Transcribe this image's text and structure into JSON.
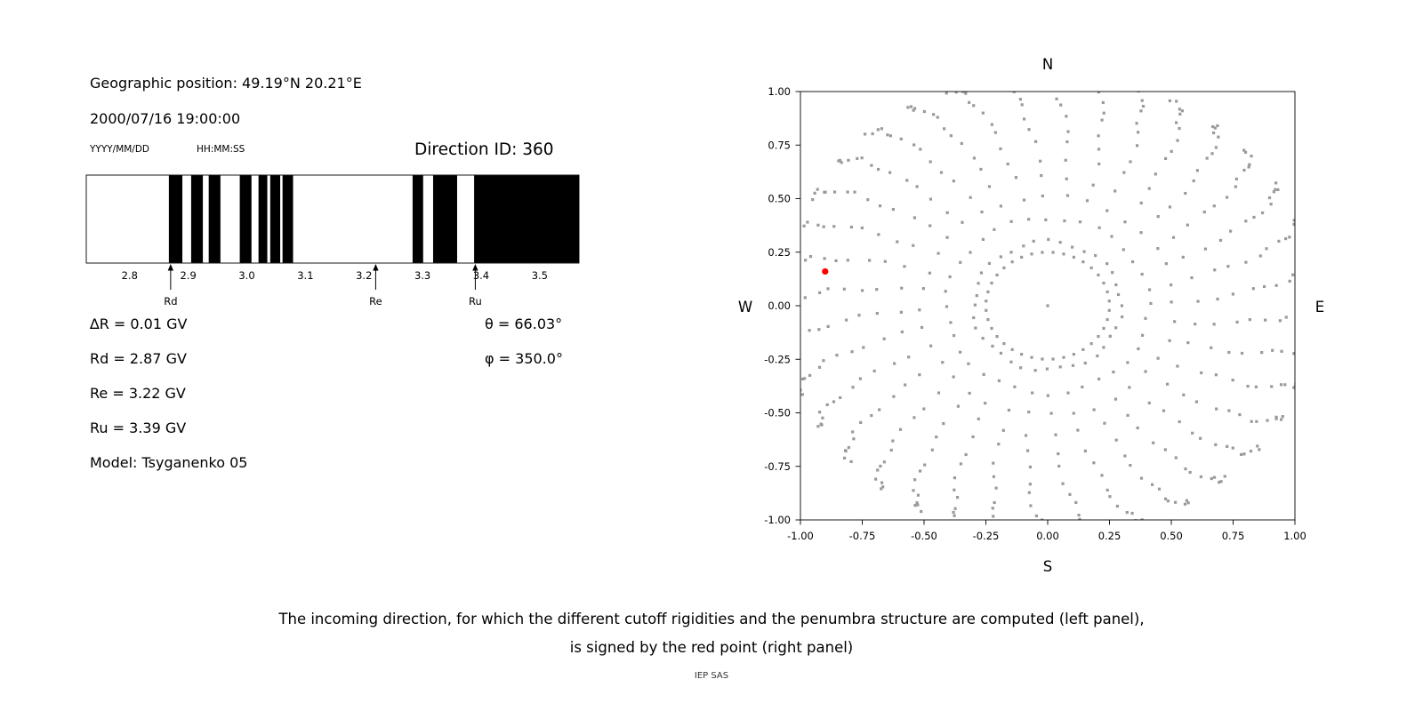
{
  "left_panel": {
    "geo_position": "Geographic position: 49.19°N 20.21°E",
    "datetime": "2000/07/16 19:00:00",
    "date_format_label": "YYYY/MM/DD",
    "time_format_label": "HH:MM:SS",
    "direction_id_label": "Direction ID: 360",
    "delta_r": "∆R = 0.01 GV",
    "rd": "Rd = 2.87 GV",
    "re": "Re = 3.22 GV",
    "ru": "Ru = 3.39 GV",
    "model": "Model: Tsyganenko 05",
    "theta": "θ = 66.03°",
    "phi": "φ = 350.0°"
  },
  "caption": {
    "line1": "The incoming direction, for which the different cutoff rigidities and the penumbra structure are computed (left panel),",
    "line2": "is signed by the red point (right panel)",
    "credit": "IEP SAS"
  },
  "chart_data": [
    {
      "type": "bar",
      "name": "penumbra-structure",
      "xlim": [
        2.726,
        3.567
      ],
      "xticks": [
        2.8,
        2.9,
        3.0,
        3.1,
        3.2,
        3.3,
        3.4,
        3.5
      ],
      "forbidden_bands_gv": [
        [
          2.867,
          2.89
        ],
        [
          2.905,
          2.925
        ],
        [
          2.935,
          2.955
        ],
        [
          2.988,
          3.008
        ],
        [
          3.02,
          3.035
        ],
        [
          3.04,
          3.057
        ],
        [
          3.061,
          3.079
        ],
        [
          3.283,
          3.301
        ],
        [
          3.318,
          3.359
        ],
        [
          3.388,
          3.567
        ]
      ],
      "markers": [
        {
          "label": "Rd",
          "value": 2.87
        },
        {
          "label": "Re",
          "value": 3.22
        },
        {
          "label": "Ru",
          "value": 3.39
        }
      ],
      "band_color": "#000000"
    },
    {
      "type": "scatter",
      "name": "asymptotic-directions",
      "xlim": [
        -1.0,
        1.0
      ],
      "ylim": [
        -1.0,
        1.0
      ],
      "xticks": [
        -1.0,
        -0.75,
        -0.5,
        -0.25,
        0.0,
        0.25,
        0.5,
        0.75,
        1.0
      ],
      "yticks": [
        -1.0,
        -0.75,
        -0.5,
        -0.25,
        0.0,
        0.25,
        0.5,
        0.75,
        1.0
      ],
      "compass": {
        "top": "N",
        "bottom": "S",
        "left": "W",
        "right": "E"
      },
      "point_color": "#9a9a9a",
      "spokes": {
        "count": 36,
        "angle_step_deg": 10,
        "r_start": 0.3,
        "r_end": 1.08,
        "points_per_spoke": 16,
        "curvature_deg": 12,
        "bunch_exponent": 2.2
      },
      "inner_ring": {
        "radius": 0.25,
        "count": 36
      },
      "center_point": {
        "x": 0.0,
        "y": 0.0
      },
      "red_point": {
        "x": -0.9,
        "y": 0.16,
        "color": "#ff0000",
        "label": "incoming direction"
      }
    }
  ]
}
